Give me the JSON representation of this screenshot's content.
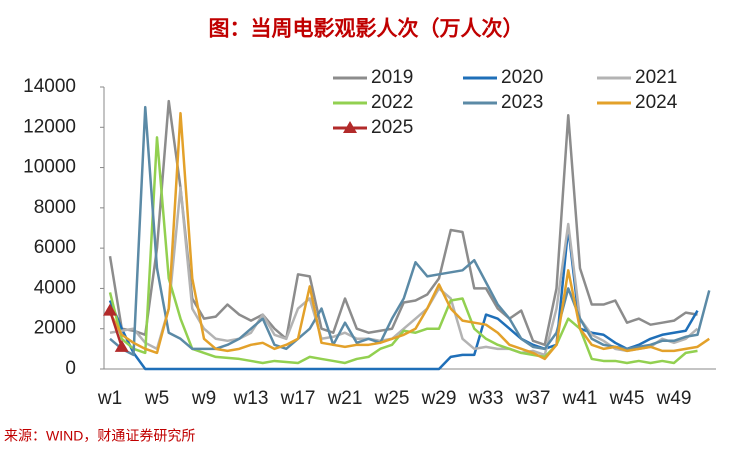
{
  "chart_data": {
    "type": "line",
    "title": "图：当周电影观影人次（万人次）",
    "source": "来源：WIND，财通证券研究所",
    "categories": [
      "w1",
      null,
      null,
      null,
      "w5",
      null,
      null,
      null,
      "w9",
      null,
      null,
      null,
      "w13",
      null,
      null,
      null,
      "w17",
      null,
      null,
      null,
      "w21",
      null,
      null,
      null,
      "w25",
      null,
      null,
      null,
      "w29",
      null,
      null,
      null,
      "w33",
      null,
      null,
      null,
      "w37",
      null,
      null,
      null,
      "w41",
      null,
      null,
      null,
      "w45",
      null,
      null,
      null,
      "w49",
      null,
      null,
      null
    ],
    "ylim": [
      0,
      14000
    ],
    "yticks": [
      0,
      2000,
      4000,
      6000,
      8000,
      10000,
      12000,
      14000
    ],
    "series": [
      {
        "name": "2019",
        "color": "#8c8c8c",
        "values": [
          5600,
          2000,
          1900,
          1700,
          6000,
          13300,
          9000,
          3500,
          2500,
          2600,
          3200,
          2700,
          2400,
          2700,
          2000,
          1500,
          4700,
          4600,
          2000,
          1800,
          3500,
          2000,
          1800,
          1900,
          2000,
          3300,
          3400,
          3700,
          4500,
          6900,
          6800,
          4000,
          4000,
          3000,
          2500,
          2900,
          1400,
          1200,
          4000,
          12600,
          5000,
          3200,
          3200,
          3400,
          2300,
          2500,
          2200,
          2300,
          2400,
          2800,
          2700,
          null
        ]
      },
      {
        "name": "2020",
        "color": "#1f6fb8",
        "values": [
          3400,
          2000,
          800,
          0,
          0,
          0,
          0,
          0,
          0,
          0,
          0,
          0,
          0,
          0,
          0,
          0,
          0,
          0,
          0,
          0,
          0,
          0,
          0,
          0,
          0,
          0,
          0,
          0,
          0,
          600,
          700,
          700,
          2700,
          2500,
          2000,
          1500,
          1200,
          1000,
          1200,
          7000,
          2000,
          1800,
          1700,
          1300,
          1000,
          1200,
          1500,
          1700,
          1800,
          1900,
          2900,
          null
        ]
      },
      {
        "name": "2021",
        "color": "#b3b3b3",
        "values": [
          1800,
          1900,
          2000,
          1300,
          1000,
          3000,
          9000,
          3000,
          2000,
          1500,
          1400,
          1500,
          1800,
          2700,
          1700,
          1500,
          3000,
          3500,
          1500,
          1600,
          1800,
          1500,
          1500,
          1400,
          1500,
          2000,
          2500,
          3000,
          4000,
          3500,
          1500,
          1000,
          1100,
          1000,
          1000,
          800,
          900,
          700,
          3000,
          7200,
          2500,
          1700,
          1400,
          1000,
          900,
          1000,
          1100,
          1500,
          1300,
          1500,
          2000,
          null
        ]
      },
      {
        "name": "2022",
        "color": "#92d050",
        "values": [
          3800,
          1500,
          1000,
          800,
          11500,
          4500,
          2500,
          1000,
          800,
          600,
          550,
          500,
          400,
          300,
          400,
          350,
          300,
          600,
          500,
          400,
          300,
          500,
          600,
          1000,
          1200,
          1900,
          1800,
          2000,
          2000,
          3400,
          3500,
          2000,
          1500,
          1200,
          1000,
          800,
          700,
          600,
          1200,
          2500,
          2000,
          500,
          400,
          400,
          300,
          400,
          300,
          400,
          300,
          800,
          900,
          null
        ]
      },
      {
        "name": "2023",
        "color": "#5b8aa6",
        "values": [
          1500,
          1000,
          700,
          13000,
          5000,
          1800,
          1500,
          1000,
          1000,
          1000,
          1200,
          1500,
          2000,
          2500,
          1200,
          1000,
          1500,
          2000,
          3000,
          1200,
          2300,
          1300,
          1500,
          1300,
          2500,
          3500,
          5300,
          4600,
          4700,
          4800,
          4900,
          5400,
          4300,
          3200,
          2500,
          1500,
          1100,
          1000,
          1800,
          4000,
          2500,
          1500,
          1200,
          1100,
          1000,
          1100,
          1200,
          1400,
          1400,
          1600,
          1700,
          3900
        ]
      },
      {
        "name": "2024",
        "color": "#e3a12a",
        "values": [
          2800,
          1700,
          1300,
          1000,
          800,
          3000,
          12700,
          4500,
          1500,
          1000,
          900,
          1000,
          1200,
          1300,
          1000,
          1200,
          1500,
          4100,
          1300,
          1200,
          1100,
          1200,
          1200,
          1300,
          1500,
          1700,
          2000,
          3000,
          4200,
          3000,
          2400,
          2300,
          2200,
          1800,
          1200,
          1000,
          800,
          500,
          1200,
          4900,
          2000,
          1200,
          1000,
          1100,
          900,
          1000,
          1100,
          900,
          900,
          1000,
          1100,
          1500
        ]
      },
      {
        "name": "2025",
        "color": "#b22a2a",
        "marker": "triangle",
        "values": [
          2900,
          1100,
          null,
          null,
          null,
          null,
          null,
          null,
          null,
          null,
          null,
          null,
          null,
          null,
          null,
          null,
          null,
          null,
          null,
          null,
          null,
          null,
          null,
          null,
          null,
          null,
          null,
          null,
          null,
          null,
          null,
          null,
          null,
          null,
          null,
          null,
          null,
          null,
          null,
          null,
          null,
          null,
          null,
          null,
          null,
          null,
          null,
          null,
          null,
          null,
          null,
          null
        ]
      }
    ]
  }
}
